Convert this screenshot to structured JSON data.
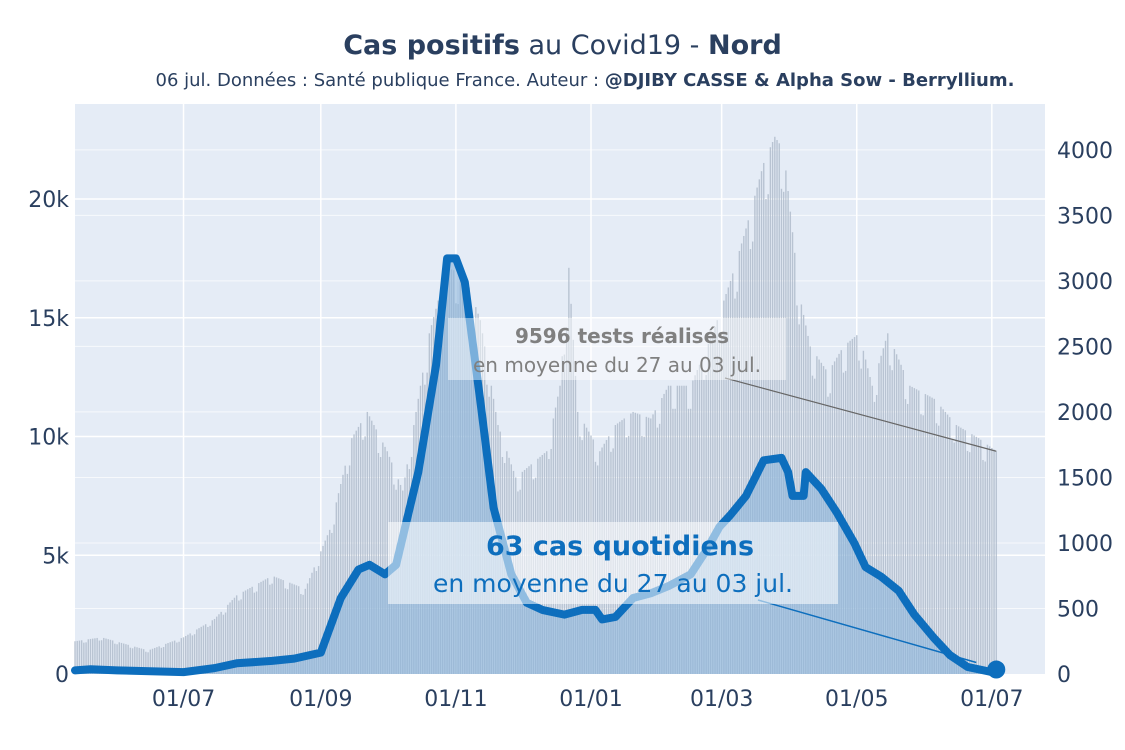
{
  "title": {
    "bold1": "Cas positifs",
    "mid": " au Covid19 - ",
    "bold2": "Nord"
  },
  "subtitle": {
    "plain": "06 jul. Données : Santé publique France. Auteur : ",
    "bold": "@DJIBY CASSE & Alpha Sow - Berryllium."
  },
  "colors": {
    "plot_bg": "#e5ecf6",
    "cases_line": "#0d6ebd",
    "cases_fill": "#8ab4da",
    "tests_bars": "#b0bccb",
    "text": "#2a3f5f"
  },
  "chart_data": {
    "type": "line",
    "x_axis": {
      "ticks": [
        "01/07",
        "01/09",
        "01/11",
        "01/01",
        "01/03",
        "01/05",
        "01/07"
      ],
      "tick_dates": [
        "2020-07-01",
        "2020-09-01",
        "2020-11-01",
        "2021-01-01",
        "2021-03-01",
        "2021-05-01",
        "2021-07-01"
      ],
      "range": [
        "2020-05-13",
        "2021-07-25"
      ]
    },
    "y_left": {
      "ticks": [
        "0",
        "5k",
        "10k",
        "15k",
        "20k"
      ],
      "range": [
        0,
        24000
      ]
    },
    "y_right": {
      "ticks": [
        "0",
        "500",
        "1000",
        "1500",
        "2000",
        "2500",
        "3000",
        "3500",
        "4000"
      ],
      "range": [
        0,
        4350
      ]
    },
    "grid": true,
    "series": [
      {
        "axis": "left",
        "points": [
          [
            "2020-05-13",
            150
          ],
          [
            "2020-05-20",
            200
          ],
          [
            "2020-06-01",
            150
          ],
          [
            "2020-07-01",
            80
          ],
          [
            "2020-07-15",
            250
          ],
          [
            "2020-07-25",
            450
          ],
          [
            "2020-08-10",
            550
          ],
          [
            "2020-08-20",
            650
          ],
          [
            "2020-09-01",
            900
          ],
          [
            "2020-09-10",
            3200
          ],
          [
            "2020-09-18",
            4400
          ],
          [
            "2020-09-23",
            4600
          ],
          [
            "2020-09-30",
            4200
          ],
          [
            "2020-10-05",
            4600
          ],
          [
            "2020-10-15",
            8500
          ],
          [
            "2020-10-23",
            13000
          ],
          [
            "2020-10-28",
            17500
          ],
          [
            "2020-11-01",
            17500
          ],
          [
            "2020-11-05",
            16500
          ],
          [
            "2020-11-12",
            11500
          ],
          [
            "2020-11-18",
            7000
          ],
          [
            "2020-11-26",
            4200
          ],
          [
            "2020-12-03",
            3000
          ],
          [
            "2020-12-10",
            2700
          ],
          [
            "2020-12-20",
            2500
          ],
          [
            "2020-12-28",
            2700
          ],
          [
            "2021-01-03",
            2700
          ],
          [
            "2021-01-06",
            2300
          ],
          [
            "2021-01-12",
            2400
          ],
          [
            "2021-01-20",
            3200
          ],
          [
            "2021-01-28",
            3400
          ],
          [
            "2021-02-05",
            3700
          ],
          [
            "2021-02-15",
            4200
          ],
          [
            "2021-02-22",
            5200
          ],
          [
            "2021-02-28",
            6200
          ],
          [
            "2021-03-05",
            6700
          ],
          [
            "2021-03-12",
            7500
          ],
          [
            "2021-03-20",
            9000
          ],
          [
            "2021-03-28",
            9100
          ],
          [
            "2021-03-31",
            8500
          ],
          [
            "2021-04-02",
            7500
          ],
          [
            "2021-04-07",
            7500
          ],
          [
            "2021-04-08",
            8500
          ],
          [
            "2021-04-15",
            7800
          ],
          [
            "2021-04-22",
            6800
          ],
          [
            "2021-04-30",
            5500
          ],
          [
            "2021-05-05",
            4500
          ],
          [
            "2021-05-12",
            4100
          ],
          [
            "2021-05-20",
            3500
          ],
          [
            "2021-05-27",
            2500
          ],
          [
            "2021-06-05",
            1500
          ],
          [
            "2021-06-12",
            800
          ],
          [
            "2021-06-20",
            300
          ],
          [
            "2021-06-30",
            100
          ],
          [
            "2021-07-03",
            63
          ]
        ]
      },
      {
        "axis": "right",
        "points": [
          [
            "2020-05-13",
            250
          ],
          [
            "2020-05-25",
            280
          ],
          [
            "2020-06-15",
            180
          ],
          [
            "2020-07-01",
            280
          ],
          [
            "2020-07-15",
            420
          ],
          [
            "2020-07-25",
            600
          ],
          [
            "2020-08-10",
            750
          ],
          [
            "2020-08-25",
            650
          ],
          [
            "2020-09-05",
            1100
          ],
          [
            "2020-09-15",
            1800
          ],
          [
            "2020-09-22",
            2000
          ],
          [
            "2020-10-01",
            1700
          ],
          [
            "2020-10-08",
            1400
          ],
          [
            "2020-10-20",
            2600
          ],
          [
            "2020-10-28",
            3100
          ],
          [
            "2020-11-05",
            3050
          ],
          [
            "2020-11-12",
            2700
          ],
          [
            "2020-11-20",
            1900
          ],
          [
            "2020-11-28",
            1500
          ],
          [
            "2020-12-05",
            1600
          ],
          [
            "2020-12-12",
            1700
          ],
          [
            "2020-12-18",
            2200
          ],
          [
            "2020-12-22",
            3100
          ],
          [
            "2020-12-26",
            2000
          ],
          [
            "2021-01-05",
            1700
          ],
          [
            "2021-01-12",
            1900
          ],
          [
            "2021-01-20",
            2000
          ],
          [
            "2021-01-28",
            1950
          ],
          [
            "2021-02-05",
            2200
          ],
          [
            "2021-02-15",
            2200
          ],
          [
            "2021-02-25",
            2600
          ],
          [
            "2021-03-05",
            3000
          ],
          [
            "2021-03-12",
            3400
          ],
          [
            "2021-03-20",
            3900
          ],
          [
            "2021-03-25",
            4100
          ],
          [
            "2021-03-29",
            4000
          ],
          [
            "2021-04-05",
            2900
          ],
          [
            "2021-04-10",
            2500
          ],
          [
            "2021-04-18",
            2300
          ],
          [
            "2021-04-25",
            2500
          ],
          [
            "2021-05-02",
            2600
          ],
          [
            "2021-05-08",
            2200
          ],
          [
            "2021-05-15",
            2600
          ],
          [
            "2021-05-25",
            2200
          ],
          [
            "2021-06-05",
            2100
          ],
          [
            "2021-06-15",
            1900
          ],
          [
            "2021-06-25",
            1800
          ],
          [
            "2021-07-03",
            1700
          ]
        ]
      }
    ],
    "annotations": {
      "tests": {
        "line1": "9596 tests réalisés",
        "line2": "en moyenne du 27 au 03 jul."
      },
      "cases": {
        "line1": "63 cas quotidiens",
        "line2": "en moyenne du 27 au 03 jul."
      }
    }
  }
}
